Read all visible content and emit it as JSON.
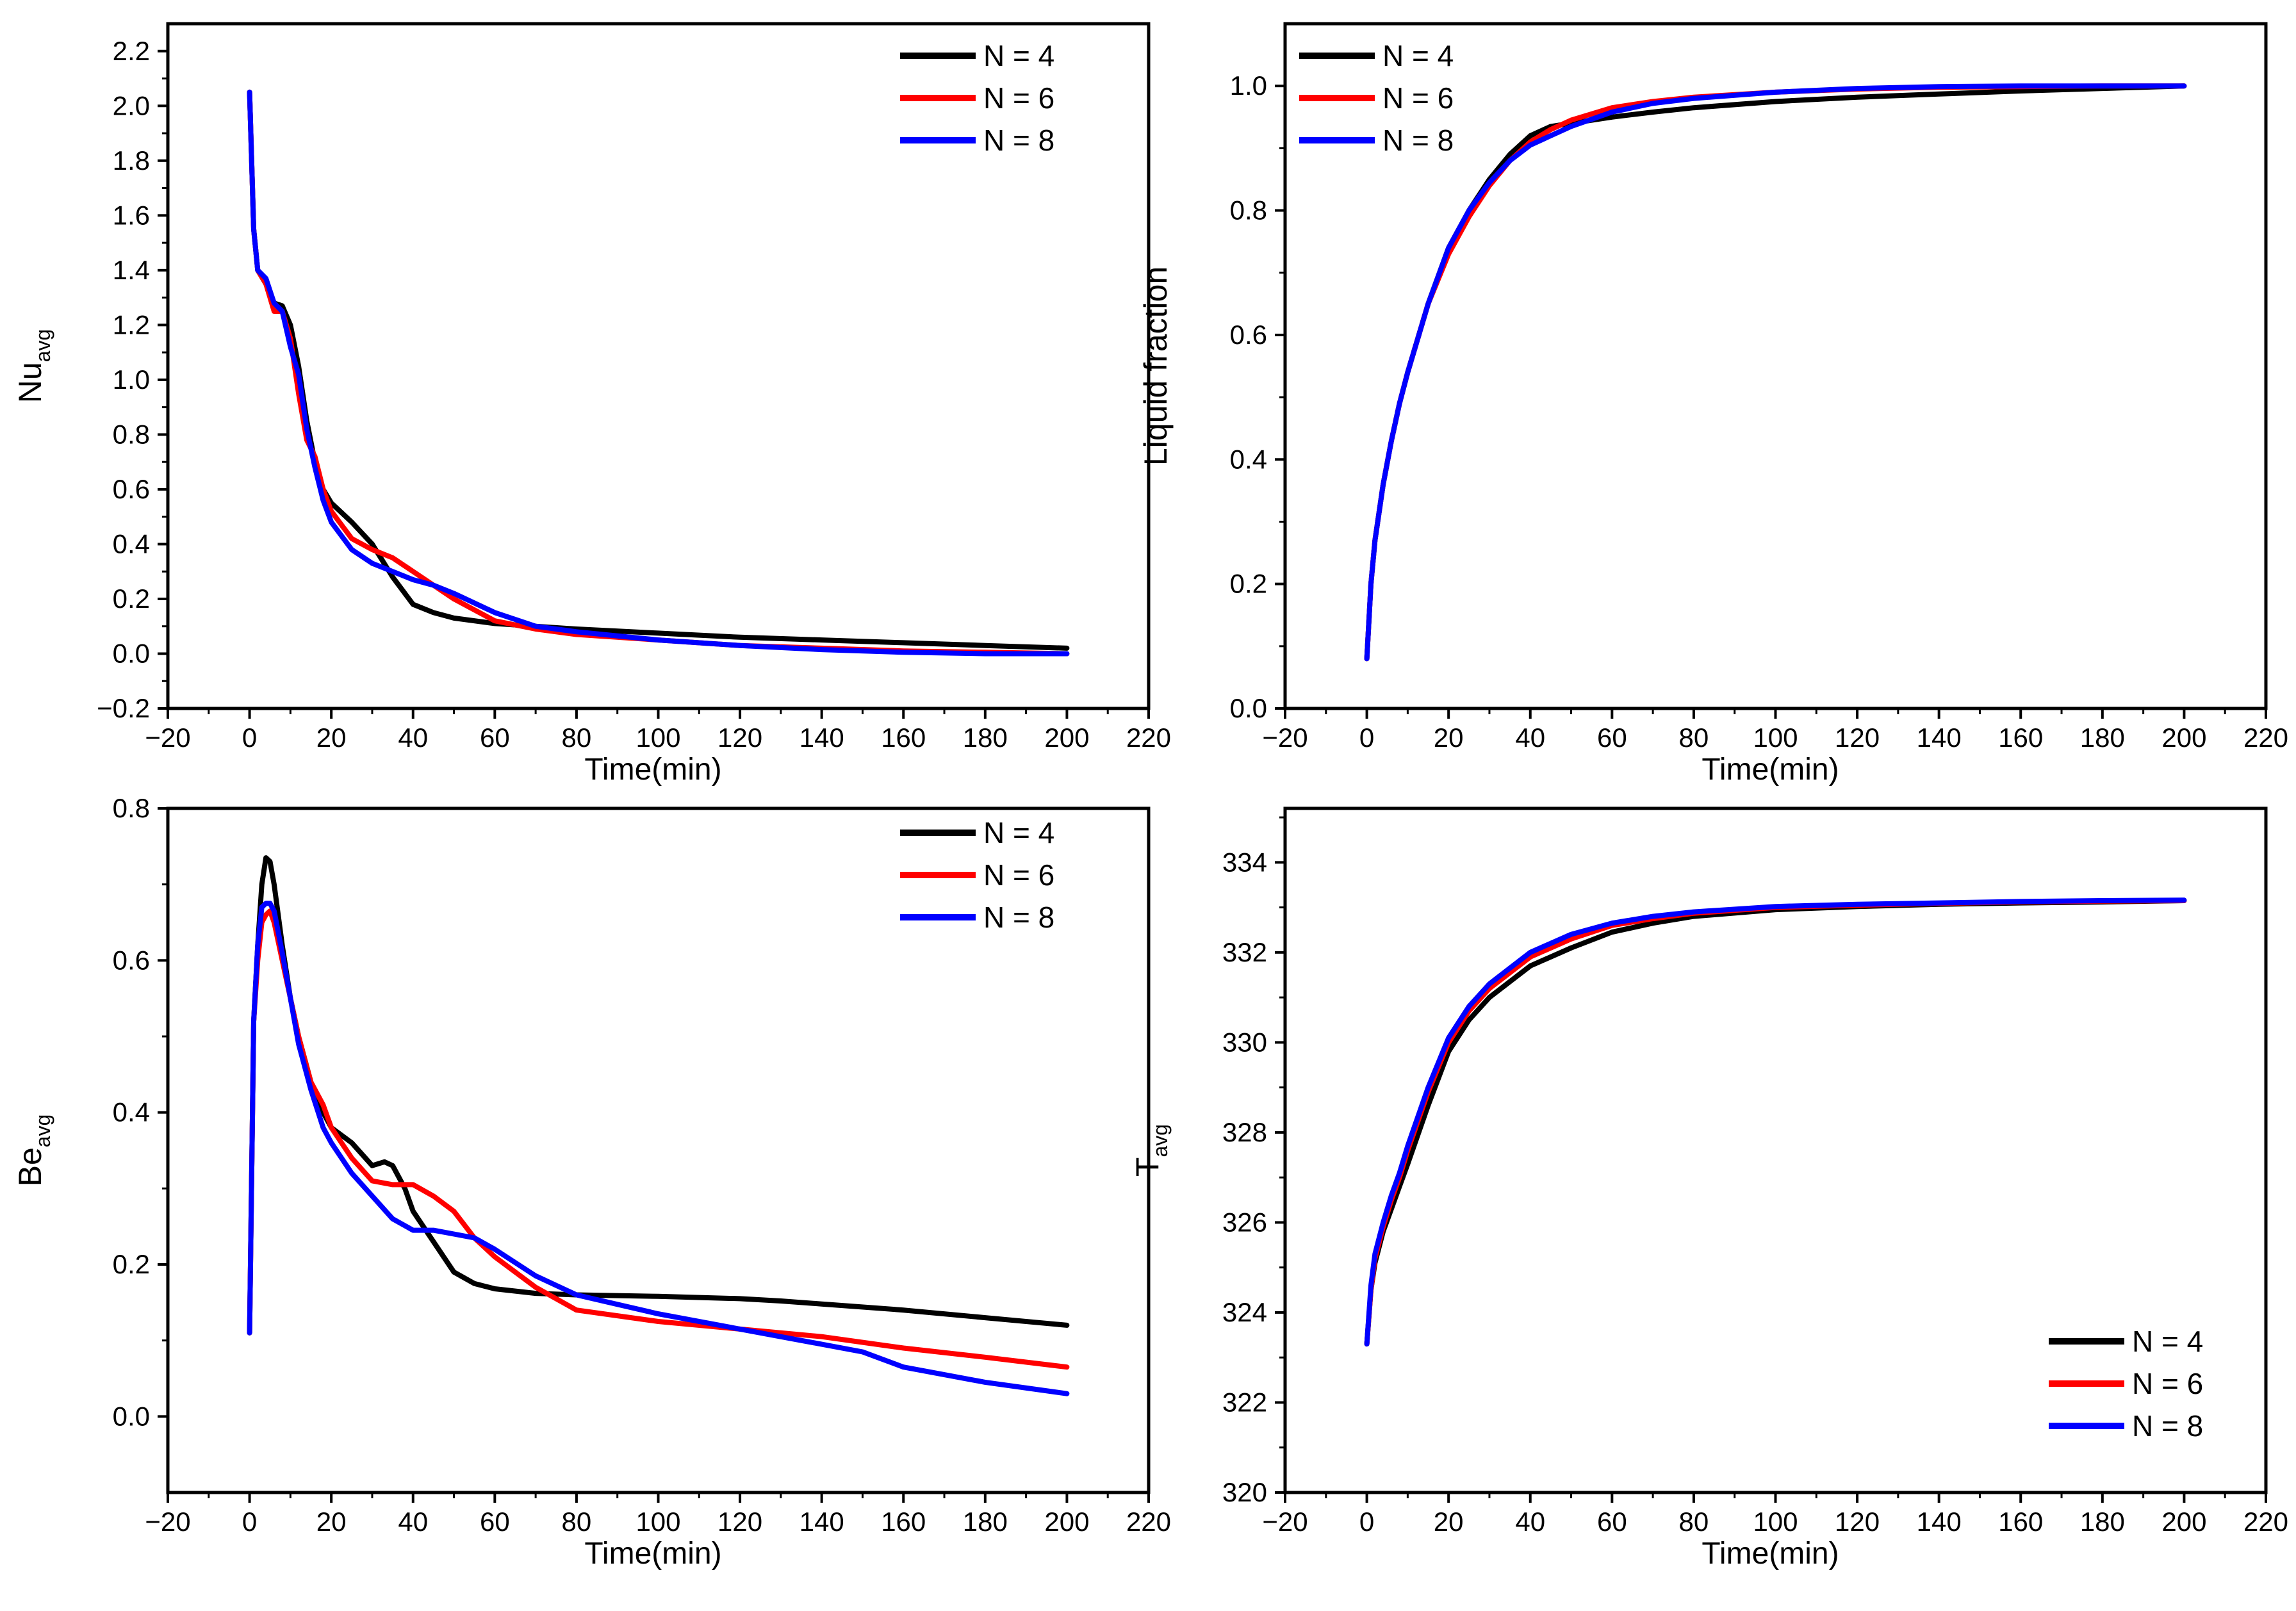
{
  "colors": {
    "N4": "#000000",
    "N6": "#ff0000",
    "N8": "#0000ff"
  },
  "chart_data": [
    {
      "id": "nu",
      "type": "line",
      "title": "",
      "xlabel": "Time(min)",
      "ylabel_main": "Nu",
      "ylabel_sub": "avg",
      "xlim": [
        -20,
        220
      ],
      "ylim": [
        -0.2,
        2.3
      ],
      "xticks": [
        -20,
        0,
        20,
        40,
        60,
        80,
        100,
        120,
        140,
        160,
        180,
        200,
        220
      ],
      "xtick_labels": [
        "−20",
        "0",
        "20",
        "40",
        "60",
        "80",
        "100",
        "120",
        "140",
        "160",
        "180",
        "200",
        "220"
      ],
      "yticks": [
        -0.2,
        0.0,
        0.2,
        0.4,
        0.6,
        0.8,
        1.0,
        1.2,
        1.4,
        1.6,
        1.8,
        2.0,
        2.2
      ],
      "ytick_labels": [
        "−0.2",
        "0.0",
        "0.2",
        "0.4",
        "0.6",
        "0.8",
        "1.0",
        "1.2",
        "1.4",
        "1.6",
        "1.8",
        "2.0",
        "2.2"
      ],
      "legend_position": "top-right",
      "series": [
        {
          "name": "N = 4",
          "color": "#000000",
          "x": [
            0,
            1,
            2,
            4,
            6,
            8,
            10,
            12,
            14,
            16,
            18,
            20,
            25,
            30,
            35,
            40,
            45,
            50,
            60,
            70,
            80,
            100,
            120,
            140,
            160,
            180,
            200
          ],
          "values": [
            2.05,
            1.55,
            1.4,
            1.35,
            1.28,
            1.27,
            1.2,
            1.05,
            0.85,
            0.7,
            0.6,
            0.55,
            0.48,
            0.4,
            0.28,
            0.18,
            0.15,
            0.13,
            0.11,
            0.1,
            0.09,
            0.075,
            0.06,
            0.05,
            0.04,
            0.03,
            0.02
          ]
        },
        {
          "name": "N = 6",
          "color": "#ff0000",
          "x": [
            0,
            1,
            2,
            4,
            6,
            8,
            10,
            12,
            14,
            16,
            18,
            20,
            25,
            30,
            35,
            40,
            45,
            50,
            60,
            70,
            80,
            100,
            120,
            140,
            160,
            180,
            200
          ],
          "values": [
            2.05,
            1.55,
            1.4,
            1.35,
            1.25,
            1.25,
            1.15,
            0.95,
            0.78,
            0.72,
            0.6,
            0.52,
            0.42,
            0.38,
            0.35,
            0.3,
            0.25,
            0.2,
            0.12,
            0.09,
            0.07,
            0.05,
            0.03,
            0.02,
            0.01,
            0.005,
            0.0
          ]
        },
        {
          "name": "N = 8",
          "color": "#0000ff",
          "x": [
            0,
            1,
            2,
            4,
            6,
            8,
            10,
            12,
            14,
            16,
            18,
            20,
            25,
            30,
            35,
            40,
            45,
            50,
            60,
            70,
            80,
            100,
            120,
            140,
            160,
            180,
            200
          ],
          "values": [
            2.05,
            1.55,
            1.4,
            1.37,
            1.28,
            1.25,
            1.12,
            1.02,
            0.82,
            0.68,
            0.56,
            0.48,
            0.38,
            0.33,
            0.3,
            0.27,
            0.25,
            0.22,
            0.15,
            0.1,
            0.08,
            0.05,
            0.03,
            0.015,
            0.005,
            0.0,
            0.0
          ]
        }
      ]
    },
    {
      "id": "lf",
      "type": "line",
      "title": "",
      "xlabel": "Time(min)",
      "ylabel_main": "Liquid fraction",
      "ylabel_sub": "",
      "xlim": [
        -20,
        220
      ],
      "ylim": [
        0.0,
        1.1
      ],
      "xticks": [
        -20,
        0,
        20,
        40,
        60,
        80,
        100,
        120,
        140,
        160,
        180,
        200,
        220
      ],
      "xtick_labels": [
        "−20",
        "0",
        "20",
        "40",
        "60",
        "80",
        "100",
        "120",
        "140",
        "160",
        "180",
        "200",
        "220"
      ],
      "yticks": [
        0.0,
        0.2,
        0.4,
        0.6,
        0.8,
        1.0
      ],
      "ytick_labels": [
        "0.0",
        "0.2",
        "0.4",
        "0.6",
        "0.8",
        "1.0"
      ],
      "legend_position": "top-left",
      "series": [
        {
          "name": "N = 4",
          "color": "#000000",
          "x": [
            0,
            1,
            2,
            4,
            6,
            8,
            10,
            15,
            20,
            25,
            30,
            35,
            40,
            45,
            50,
            60,
            70,
            80,
            100,
            120,
            140,
            160,
            180,
            200
          ],
          "values": [
            0.08,
            0.2,
            0.27,
            0.36,
            0.43,
            0.49,
            0.54,
            0.65,
            0.74,
            0.8,
            0.85,
            0.89,
            0.92,
            0.935,
            0.94,
            0.95,
            0.958,
            0.965,
            0.975,
            0.982,
            0.987,
            0.992,
            0.996,
            1.0
          ]
        },
        {
          "name": "N = 6",
          "color": "#ff0000",
          "x": [
            0,
            1,
            2,
            4,
            6,
            8,
            10,
            15,
            20,
            25,
            30,
            35,
            40,
            45,
            50,
            60,
            70,
            80,
            100,
            120,
            140,
            160,
            180,
            200
          ],
          "values": [
            0.08,
            0.2,
            0.27,
            0.36,
            0.43,
            0.49,
            0.54,
            0.65,
            0.73,
            0.79,
            0.84,
            0.88,
            0.91,
            0.93,
            0.945,
            0.965,
            0.975,
            0.982,
            0.99,
            0.995,
            0.998,
            0.999,
            1.0,
            1.0
          ]
        },
        {
          "name": "N = 8",
          "color": "#0000ff",
          "x": [
            0,
            1,
            2,
            4,
            6,
            8,
            10,
            15,
            20,
            25,
            30,
            35,
            40,
            45,
            50,
            60,
            70,
            80,
            100,
            120,
            140,
            160,
            180,
            200
          ],
          "values": [
            0.08,
            0.2,
            0.27,
            0.36,
            0.43,
            0.49,
            0.54,
            0.65,
            0.74,
            0.8,
            0.845,
            0.88,
            0.905,
            0.92,
            0.935,
            0.958,
            0.972,
            0.98,
            0.99,
            0.996,
            0.999,
            1.0,
            1.0,
            1.0
          ]
        }
      ]
    },
    {
      "id": "be",
      "type": "line",
      "title": "",
      "xlabel": "Time(min)",
      "ylabel_main": "Be",
      "ylabel_sub": "avg",
      "xlim": [
        -20,
        220
      ],
      "ylim": [
        -0.1,
        0.8
      ],
      "xticks": [
        -20,
        0,
        20,
        40,
        60,
        80,
        100,
        120,
        140,
        160,
        180,
        200,
        220
      ],
      "xtick_labels": [
        "−20",
        "0",
        "20",
        "40",
        "60",
        "80",
        "100",
        "120",
        "140",
        "160",
        "180",
        "200",
        "220"
      ],
      "yticks": [
        0.0,
        0.2,
        0.4,
        0.6,
        0.8
      ],
      "ytick_labels": [
        "0.0",
        "0.2",
        "0.4",
        "0.6",
        "0.8"
      ],
      "legend_position": "top-right",
      "series": [
        {
          "name": "N = 4",
          "color": "#000000",
          "x": [
            0,
            1,
            2,
            3,
            4,
            5,
            6,
            8,
            10,
            12,
            15,
            18,
            20,
            25,
            30,
            33,
            35,
            38,
            40,
            45,
            50,
            55,
            60,
            70,
            80,
            100,
            120,
            130,
            140,
            160,
            180,
            200
          ],
          "values": [
            0.11,
            0.52,
            0.62,
            0.7,
            0.735,
            0.73,
            0.7,
            0.62,
            0.55,
            0.5,
            0.44,
            0.4,
            0.38,
            0.36,
            0.33,
            0.335,
            0.33,
            0.3,
            0.27,
            0.23,
            0.19,
            0.175,
            0.168,
            0.162,
            0.16,
            0.158,
            0.155,
            0.152,
            0.148,
            0.14,
            0.13,
            0.12
          ]
        },
        {
          "name": "N = 6",
          "color": "#ff0000",
          "x": [
            0,
            1,
            2,
            3,
            4,
            5,
            6,
            8,
            10,
            12,
            15,
            18,
            20,
            25,
            30,
            35,
            40,
            45,
            50,
            55,
            60,
            70,
            80,
            100,
            120,
            140,
            160,
            180,
            200
          ],
          "values": [
            0.11,
            0.52,
            0.6,
            0.65,
            0.66,
            0.665,
            0.65,
            0.6,
            0.55,
            0.5,
            0.44,
            0.41,
            0.38,
            0.34,
            0.31,
            0.305,
            0.305,
            0.29,
            0.27,
            0.235,
            0.21,
            0.17,
            0.14,
            0.125,
            0.115,
            0.105,
            0.09,
            0.078,
            0.065
          ]
        },
        {
          "name": "N = 8",
          "color": "#0000ff",
          "x": [
            0,
            1,
            2,
            3,
            4,
            5,
            6,
            8,
            10,
            12,
            15,
            18,
            20,
            25,
            30,
            35,
            40,
            45,
            50,
            55,
            60,
            70,
            80,
            100,
            120,
            140,
            150,
            160,
            180,
            200
          ],
          "values": [
            0.11,
            0.52,
            0.62,
            0.67,
            0.675,
            0.675,
            0.665,
            0.61,
            0.55,
            0.49,
            0.43,
            0.38,
            0.36,
            0.32,
            0.29,
            0.26,
            0.245,
            0.245,
            0.24,
            0.235,
            0.22,
            0.185,
            0.16,
            0.135,
            0.115,
            0.095,
            0.085,
            0.065,
            0.045,
            0.03
          ]
        }
      ]
    },
    {
      "id": "t",
      "type": "line",
      "title": "",
      "xlabel": "Time(min)",
      "ylabel_main": "T",
      "ylabel_sub": "avg",
      "xlim": [
        -20,
        220
      ],
      "ylim": [
        320,
        335.2
      ],
      "xticks": [
        -20,
        0,
        20,
        40,
        60,
        80,
        100,
        120,
        140,
        160,
        180,
        200,
        220
      ],
      "xtick_labels": [
        "−20",
        "0",
        "20",
        "40",
        "60",
        "80",
        "100",
        "120",
        "140",
        "160",
        "180",
        "200",
        "220"
      ],
      "yticks": [
        320,
        322,
        324,
        326,
        328,
        330,
        332,
        334
      ],
      "ytick_labels": [
        "320",
        "322",
        "324",
        "326",
        "328",
        "330",
        "332",
        "334"
      ],
      "legend_position": "bottom-right",
      "series": [
        {
          "name": "N = 4",
          "color": "#000000",
          "x": [
            0,
            1,
            2,
            4,
            6,
            8,
            10,
            15,
            20,
            25,
            30,
            40,
            50,
            60,
            70,
            80,
            100,
            120,
            140,
            160,
            180,
            200
          ],
          "values": [
            323.3,
            324.5,
            325.1,
            325.8,
            326.3,
            326.8,
            327.3,
            328.6,
            329.8,
            330.5,
            331.0,
            331.7,
            332.1,
            332.45,
            332.65,
            332.8,
            332.95,
            333.02,
            333.07,
            333.1,
            333.12,
            333.15
          ]
        },
        {
          "name": "N = 6",
          "color": "#ff0000",
          "x": [
            0,
            1,
            2,
            4,
            6,
            8,
            10,
            15,
            20,
            25,
            30,
            40,
            50,
            60,
            70,
            80,
            100,
            120,
            140,
            160,
            180,
            200
          ],
          "values": [
            323.3,
            324.5,
            325.2,
            325.9,
            326.5,
            327.0,
            327.6,
            328.9,
            330.0,
            330.7,
            331.2,
            331.9,
            332.3,
            332.6,
            332.75,
            332.87,
            333.0,
            333.05,
            333.09,
            333.12,
            333.14,
            333.15
          ]
        },
        {
          "name": "N = 8",
          "color": "#0000ff",
          "x": [
            0,
            1,
            2,
            4,
            6,
            8,
            10,
            15,
            20,
            25,
            30,
            40,
            50,
            60,
            70,
            80,
            100,
            120,
            140,
            160,
            180,
            200
          ],
          "values": [
            323.3,
            324.6,
            325.3,
            326.0,
            326.6,
            327.1,
            327.7,
            329.0,
            330.1,
            330.8,
            331.3,
            332.0,
            332.4,
            332.65,
            332.8,
            332.9,
            333.02,
            333.07,
            333.1,
            333.13,
            333.15,
            333.16
          ]
        }
      ]
    }
  ]
}
